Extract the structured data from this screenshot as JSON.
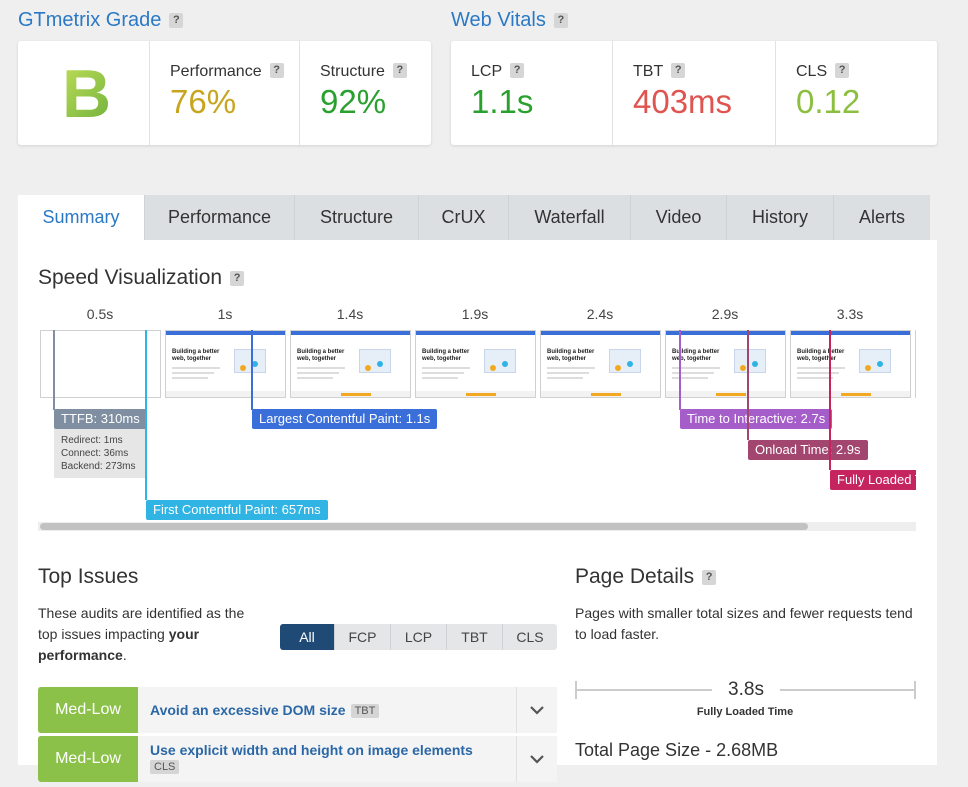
{
  "help": "?",
  "grade": {
    "title": "GTmetrix Grade",
    "letter": "B",
    "performance": {
      "label": "Performance",
      "value": "76%",
      "color": "#c8a51f"
    },
    "structure": {
      "label": "Structure",
      "value": "92%",
      "color": "#2aa02f"
    }
  },
  "vitals": {
    "title": "Web Vitals",
    "items": [
      {
        "label": "LCP",
        "value": "1.1s",
        "color": "#2aa02f"
      },
      {
        "label": "TBT",
        "value": "403ms",
        "color": "#e05450"
      },
      {
        "label": "CLS",
        "value": "0.12",
        "color": "#8cbf3f"
      }
    ]
  },
  "tabs": [
    "Summary",
    "Performance",
    "Structure",
    "CrUX",
    "Waterfall",
    "Video",
    "History",
    "Alerts"
  ],
  "speed": {
    "title": "Speed Visualization",
    "times": [
      "0.5s",
      "1s",
      "1.4s",
      "1.9s",
      "2.4s",
      "2.9s",
      "3.3s"
    ],
    "thumb_text": "Building a better web, together",
    "markers": [
      {
        "label": "TTFB: 310ms",
        "color": "#7f8ea0",
        "details": [
          "Redirect: 1ms",
          "Connect: 36ms",
          "Backend: 273ms"
        ]
      },
      {
        "label": "First Contentful Paint: 657ms",
        "color": "#2fb4e3"
      },
      {
        "label": "Largest Contentful Paint: 1.1s",
        "color": "#3a6ed8"
      },
      {
        "label": "Time to Interactive: 2.7s",
        "color": "#a55dc9"
      },
      {
        "label": "Onload Time: 2.9s",
        "color": "#a2456f"
      },
      {
        "label": "Fully Loaded T",
        "color": "#c6245f"
      }
    ]
  },
  "issues": {
    "title": "Top Issues",
    "description": {
      "text": "These audits are identified as the top issues impacting ",
      "bold": "your performance",
      "end": "."
    },
    "filters": [
      "All",
      "FCP",
      "LCP",
      "TBT",
      "CLS"
    ],
    "rows": [
      {
        "impact": "Med-Low",
        "title": "Avoid an excessive DOM size",
        "tag": "TBT"
      },
      {
        "impact": "Med-Low",
        "title": "Use explicit width and height on image elements",
        "tag": "CLS"
      }
    ]
  },
  "details": {
    "title": "Page Details",
    "description": "Pages with smaller total sizes and fewer requests tend to load faster.",
    "loaded_value": "3.8s",
    "loaded_label": "Fully Loaded Time",
    "total_size": "Total Page Size - 2.68MB"
  }
}
